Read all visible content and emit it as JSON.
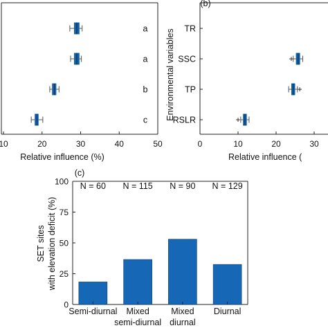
{
  "colors": {
    "box": "#1361a8",
    "bar": "#1668b6",
    "axis": "#222222",
    "whisker": "#555555"
  },
  "chart_data": [
    {
      "type": "box",
      "xlabel": "Relative influence (%)",
      "xlim": [
        10,
        50
      ],
      "xticks": [
        "10",
        "20",
        "30",
        "40",
        "50"
      ],
      "rows": [
        {
          "center": 29,
          "q1": 28.3,
          "q3": 29.7,
          "min": 27.2,
          "max": 30.4,
          "group": "a"
        },
        {
          "center": 29,
          "q1": 28.3,
          "q3": 29.7,
          "min": 27.4,
          "max": 30.2,
          "group": "a"
        },
        {
          "center": 23.2,
          "q1": 22.6,
          "q3": 23.7,
          "min": 22.0,
          "max": 24.4,
          "group": "b"
        },
        {
          "center": 18.7,
          "q1": 18.1,
          "q3": 19.1,
          "min": 17.2,
          "max": 20.2,
          "group": "c"
        }
      ]
    },
    {
      "type": "box",
      "panel_label": "(b)",
      "ylabel": "Environmental variables",
      "xlabel": "Relative influence (",
      "xlim": [
        0,
        34
      ],
      "xticks": [
        "0",
        "10",
        "20",
        "30"
      ],
      "variables": [
        "TR",
        "SSC",
        "TP",
        "RSLR"
      ],
      "rows": [
        {
          "variable": "TR",
          "center": null
        },
        {
          "variable": "SSC",
          "center": 25.8,
          "q1": 25.2,
          "q3": 26.3,
          "min": 24.5,
          "max": 27.0,
          "outliers": [
            24.0
          ]
        },
        {
          "variable": "TP",
          "center": 24.5,
          "q1": 24.0,
          "q3": 25.0,
          "min": 23.3,
          "max": 25.6,
          "outliers": [
            26.2
          ]
        },
        {
          "variable": "RSLR",
          "center": 11.8,
          "q1": 11.3,
          "q3": 12.3,
          "min": 10.7,
          "max": 12.9,
          "outliers": [
            10.0
          ]
        }
      ]
    },
    {
      "type": "bar",
      "panel_label": "(c)",
      "ylabel_lines": [
        "SET sites",
        "with elevation deficit (%)"
      ],
      "ylim": [
        0,
        100
      ],
      "yticks": [
        "0",
        "25",
        "50",
        "75",
        "100"
      ],
      "categories": [
        {
          "line1": "Semi-diurnal",
          "line2": ""
        },
        {
          "line1": "Mixed",
          "line2": "semi-diurnal"
        },
        {
          "line1": "Mixed",
          "line2": "diurnal"
        },
        {
          "line1": "Diurnal",
          "line2": ""
        }
      ],
      "values": [
        18.3,
        36.5,
        53,
        32.5
      ],
      "annotations": [
        "N = 60",
        "N = 115",
        "N = 90",
        "N = 129"
      ]
    }
  ]
}
